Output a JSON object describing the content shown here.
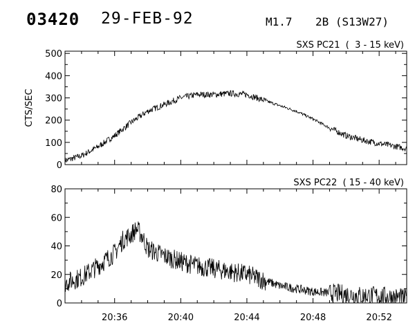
{
  "header": {
    "event_id": "03420",
    "date": "29-FEB-92",
    "flare_class": "M1.7",
    "flare_info": "2B (S13W27)"
  },
  "chart_data": [
    {
      "type": "line",
      "title": "SXS PC21  (  3 - 15 keV)",
      "ylabel": "CTS/SEC",
      "xlim": [
        "20:33:00",
        "20:53:40"
      ],
      "ylim": [
        0,
        510
      ],
      "y_ticks": [
        0,
        100,
        200,
        300,
        400,
        500
      ],
      "grid": false,
      "x": [
        "20:33:00",
        "20:34:00",
        "20:35:00",
        "20:36:00",
        "20:37:00",
        "20:38:00",
        "20:39:00",
        "20:40:00",
        "20:41:00",
        "20:42:00",
        "20:43:00",
        "20:44:00",
        "20:45:00",
        "20:46:00",
        "20:47:00",
        "20:48:00",
        "20:49:00",
        "20:50:00",
        "20:51:00",
        "20:52:00",
        "20:53:00",
        "20:53:40"
      ],
      "series": [
        {
          "values": [
            18,
            40,
            80,
            130,
            190,
            240,
            270,
            300,
            315,
            315,
            320,
            315,
            290,
            265,
            240,
            205,
            165,
            130,
            110,
            95,
            82,
            72
          ],
          "noise": 14
        }
      ]
    },
    {
      "type": "line",
      "title": "SXS PC22  ( 15 - 40 keV)",
      "ylabel": "",
      "xlim": [
        "20:33:00",
        "20:53:40"
      ],
      "ylim": [
        0,
        80
      ],
      "y_ticks": [
        0,
        20,
        40,
        60,
        80
      ],
      "x_ticks": [
        "20:36",
        "20:40",
        "20:44",
        "20:48",
        "20:52"
      ],
      "grid": false,
      "x": [
        "20:33:00",
        "20:34:00",
        "20:35:00",
        "20:36:00",
        "20:36:30",
        "20:37:00",
        "20:37:20",
        "20:37:40",
        "20:38:00",
        "20:39:00",
        "20:40:00",
        "20:41:00",
        "20:42:00",
        "20:43:00",
        "20:44:00",
        "20:45:00",
        "20:46:00",
        "20:47:00",
        "20:48:00",
        "20:49:00",
        "20:50:00",
        "20:51:00",
        "20:52:00",
        "20:53:00",
        "20:53:40"
      ],
      "series": [
        {
          "values": [
            14,
            18,
            26,
            35,
            44,
            48,
            52,
            47,
            38,
            33,
            29,
            26,
            24,
            22,
            20,
            16,
            12,
            10,
            8,
            7,
            6,
            5,
            5,
            4,
            3
          ],
          "noise": 7
        }
      ]
    }
  ]
}
